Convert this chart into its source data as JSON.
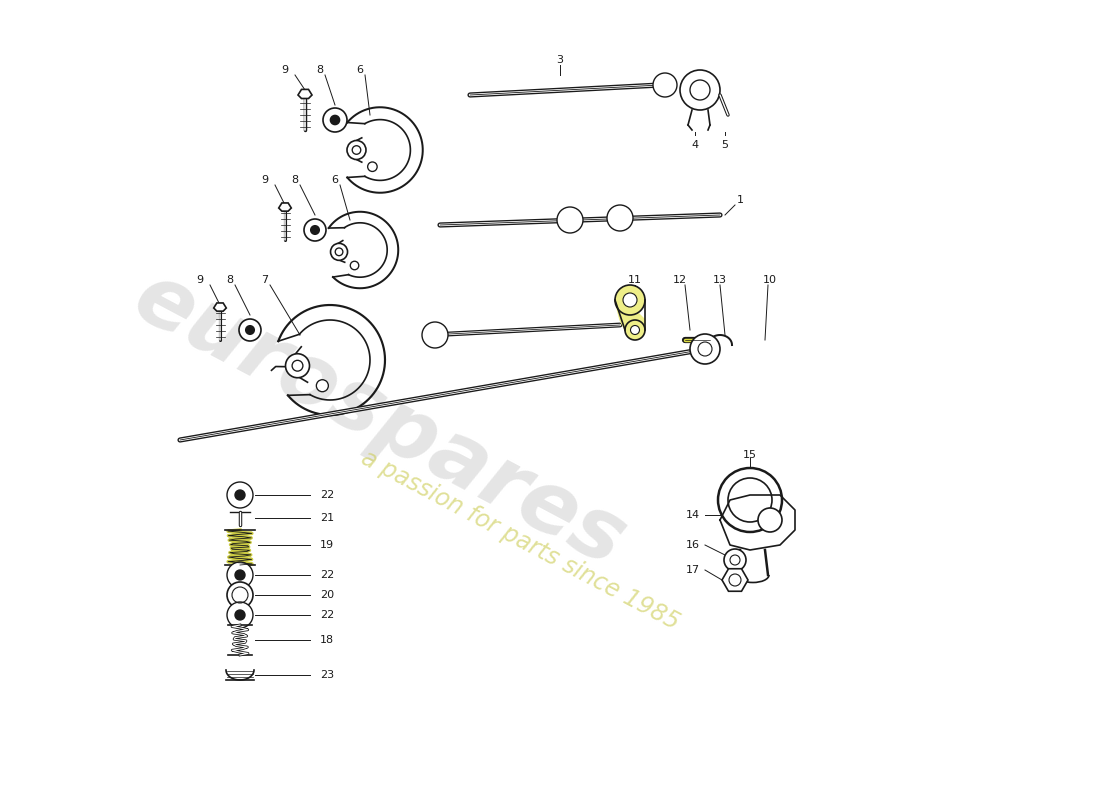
{
  "background_color": "#ffffff",
  "watermark_text1": "eurospares",
  "watermark_text2": "a passion for parts since 1985",
  "line_color": "#1a1a1a",
  "lw": 1.2,
  "fig_w": 11.0,
  "fig_h": 8.0,
  "dpi": 100
}
